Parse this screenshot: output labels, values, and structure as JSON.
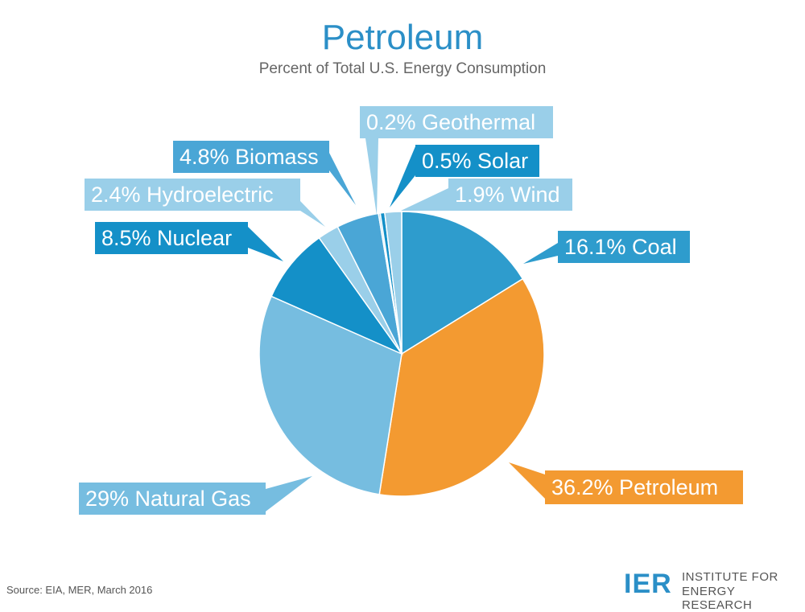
{
  "chart_data": {
    "type": "pie",
    "title": "Petroleum",
    "subtitle": "Percent of Total U.S. Energy Consumption",
    "slices": [
      {
        "label": "Coal",
        "value": 16.1,
        "text": "16.1% Coal",
        "color": "#2e9ccd",
        "label_color": "#2e9ccd"
      },
      {
        "label": "Petroleum",
        "value": 36.2,
        "text": "36.2% Petroleum",
        "color": "#f39a31",
        "label_color": "#f39a31"
      },
      {
        "label": "Natural Gas",
        "value": 29,
        "text": "29% Natural Gas",
        "color": "#76bde0",
        "label_color": "#76bde0"
      },
      {
        "label": "Nuclear",
        "value": 8.5,
        "text": "8.5% Nuclear",
        "color": "#1490c8",
        "label_color": "#1490c8"
      },
      {
        "label": "Hydroelectric",
        "value": 2.4,
        "text": "2.4% Hydroelectric",
        "color": "#9acfe9",
        "label_color": "#9acfe9"
      },
      {
        "label": "Biomass",
        "value": 4.8,
        "text": "4.8% Biomass",
        "color": "#4aa6d6",
        "label_color": "#4aa6d6"
      },
      {
        "label": "Geothermal",
        "value": 0.2,
        "text": "0.2% Geothermal",
        "color": "#9acfe9",
        "label_color": "#9acfe9"
      },
      {
        "label": "Solar",
        "value": 0.5,
        "text": "0.5% Solar",
        "color": "#1490c8",
        "label_color": "#1490c8"
      },
      {
        "label": "Wind",
        "value": 1.9,
        "text": "1.9% Wind",
        "color": "#9acfe9",
        "label_color": "#9acfe9"
      }
    ]
  },
  "source": "Source: EIA, MER, March 2016",
  "logo": {
    "mark": "IER",
    "line1": "INSTITUTE FOR",
    "line2": "ENERGY RESEARCH"
  }
}
